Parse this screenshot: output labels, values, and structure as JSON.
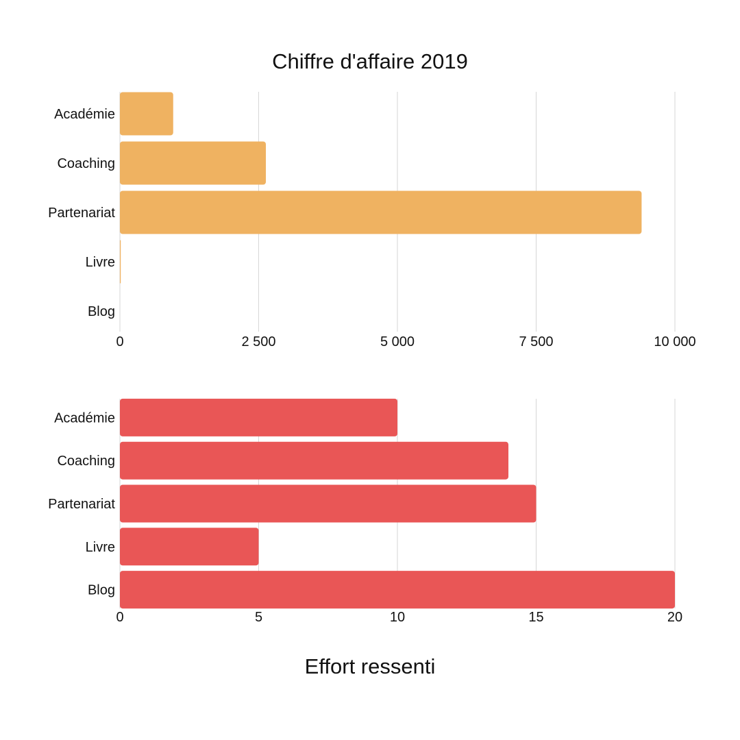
{
  "chart_data": [
    {
      "type": "bar",
      "orientation": "horizontal",
      "title": "Chiffre d'affaire 2019",
      "xlabel": "",
      "ylabel": "",
      "categories": [
        "Académie",
        "Coaching",
        "Partenariat",
        "Livre",
        "Blog"
      ],
      "values": [
        960,
        2630,
        9400,
        15,
        0
      ],
      "xlim": [
        0,
        10000
      ],
      "ticks": [
        0,
        2500,
        5000,
        7500,
        10000
      ],
      "tick_labels": [
        "0",
        "2 500",
        "5 000",
        "7 500",
        "10 000"
      ],
      "grid": true,
      "color": "#efb261"
    },
    {
      "type": "bar",
      "orientation": "horizontal",
      "title": "Effort ressenti",
      "title_position": "bottom",
      "xlabel": "",
      "ylabel": "",
      "categories": [
        "Académie",
        "Coaching",
        "Partenariat",
        "Livre",
        "Blog"
      ],
      "values": [
        10,
        14,
        15,
        5,
        20
      ],
      "xlim": [
        0,
        20
      ],
      "ticks": [
        0,
        5,
        10,
        15,
        20
      ],
      "tick_labels": [
        "0",
        "5",
        "10",
        "15",
        "20"
      ],
      "grid": true,
      "color": "#e95656"
    }
  ]
}
